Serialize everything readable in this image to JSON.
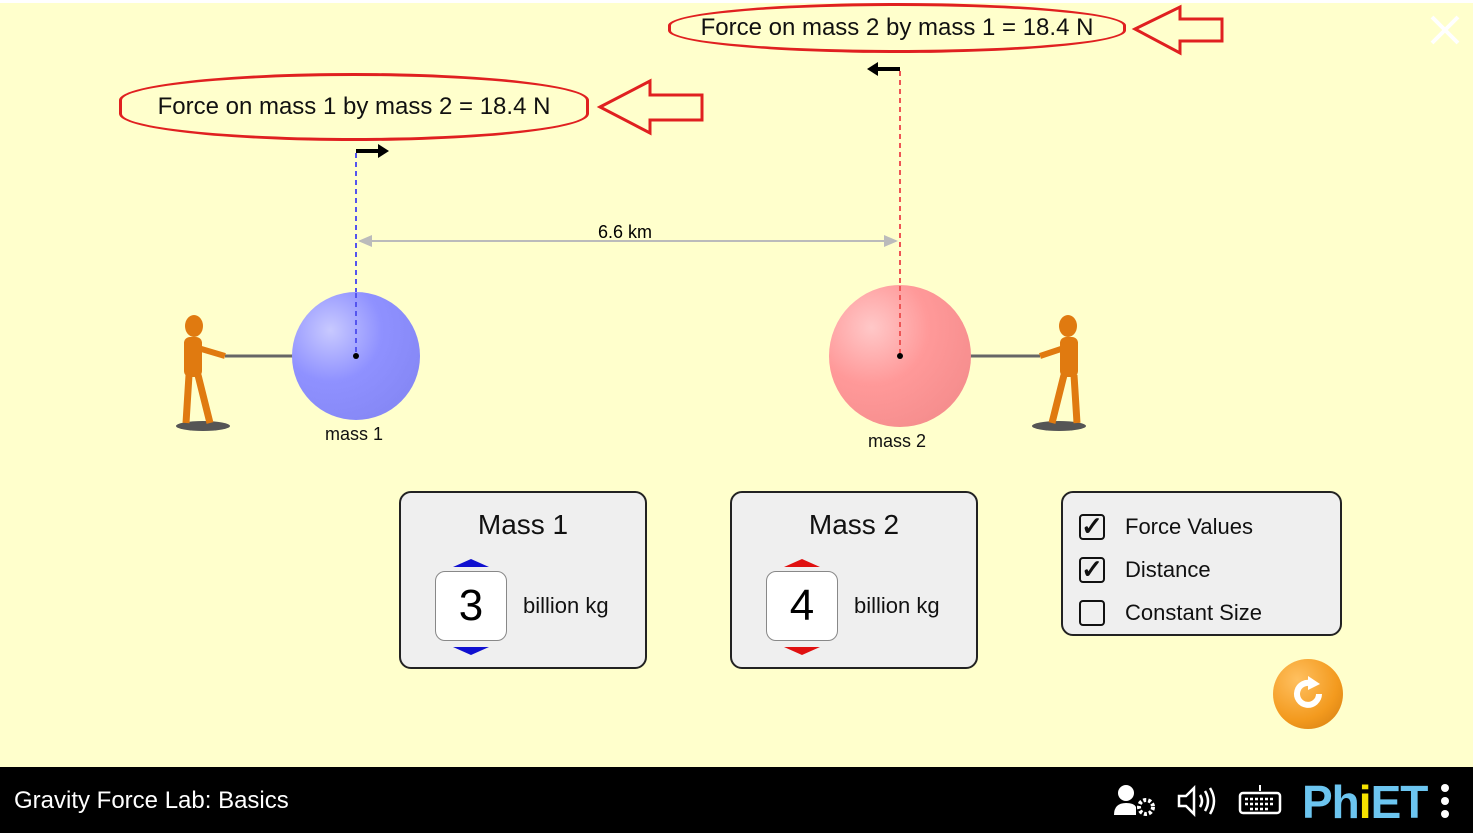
{
  "force_labels": {
    "on_mass1": "Force on mass 1 by mass 2 = 18.4 N",
    "on_mass2": "Force on mass 2 by mass 1 = 18.4 N"
  },
  "distance": "6.6 km",
  "masses": [
    {
      "label": "mass 1",
      "color": "#8f91ff"
    },
    {
      "label": "mass 2",
      "color": "#ff9999"
    }
  ],
  "mass1_panel": {
    "title": "Mass 1",
    "value": "3",
    "unit": "billion kg"
  },
  "mass2_panel": {
    "title": "Mass 2",
    "value": "4",
    "unit": "billion kg"
  },
  "options": [
    {
      "label": "Force Values",
      "checked": true
    },
    {
      "label": "Distance",
      "checked": true
    },
    {
      "label": "Constant Size",
      "checked": false
    }
  ],
  "navbar": {
    "title": "Gravity Force Lab: Basics",
    "logo": "PhET"
  },
  "colors": {
    "background": "#ffffcc",
    "annotation": "#e02020",
    "reset": "#f39a1e"
  }
}
